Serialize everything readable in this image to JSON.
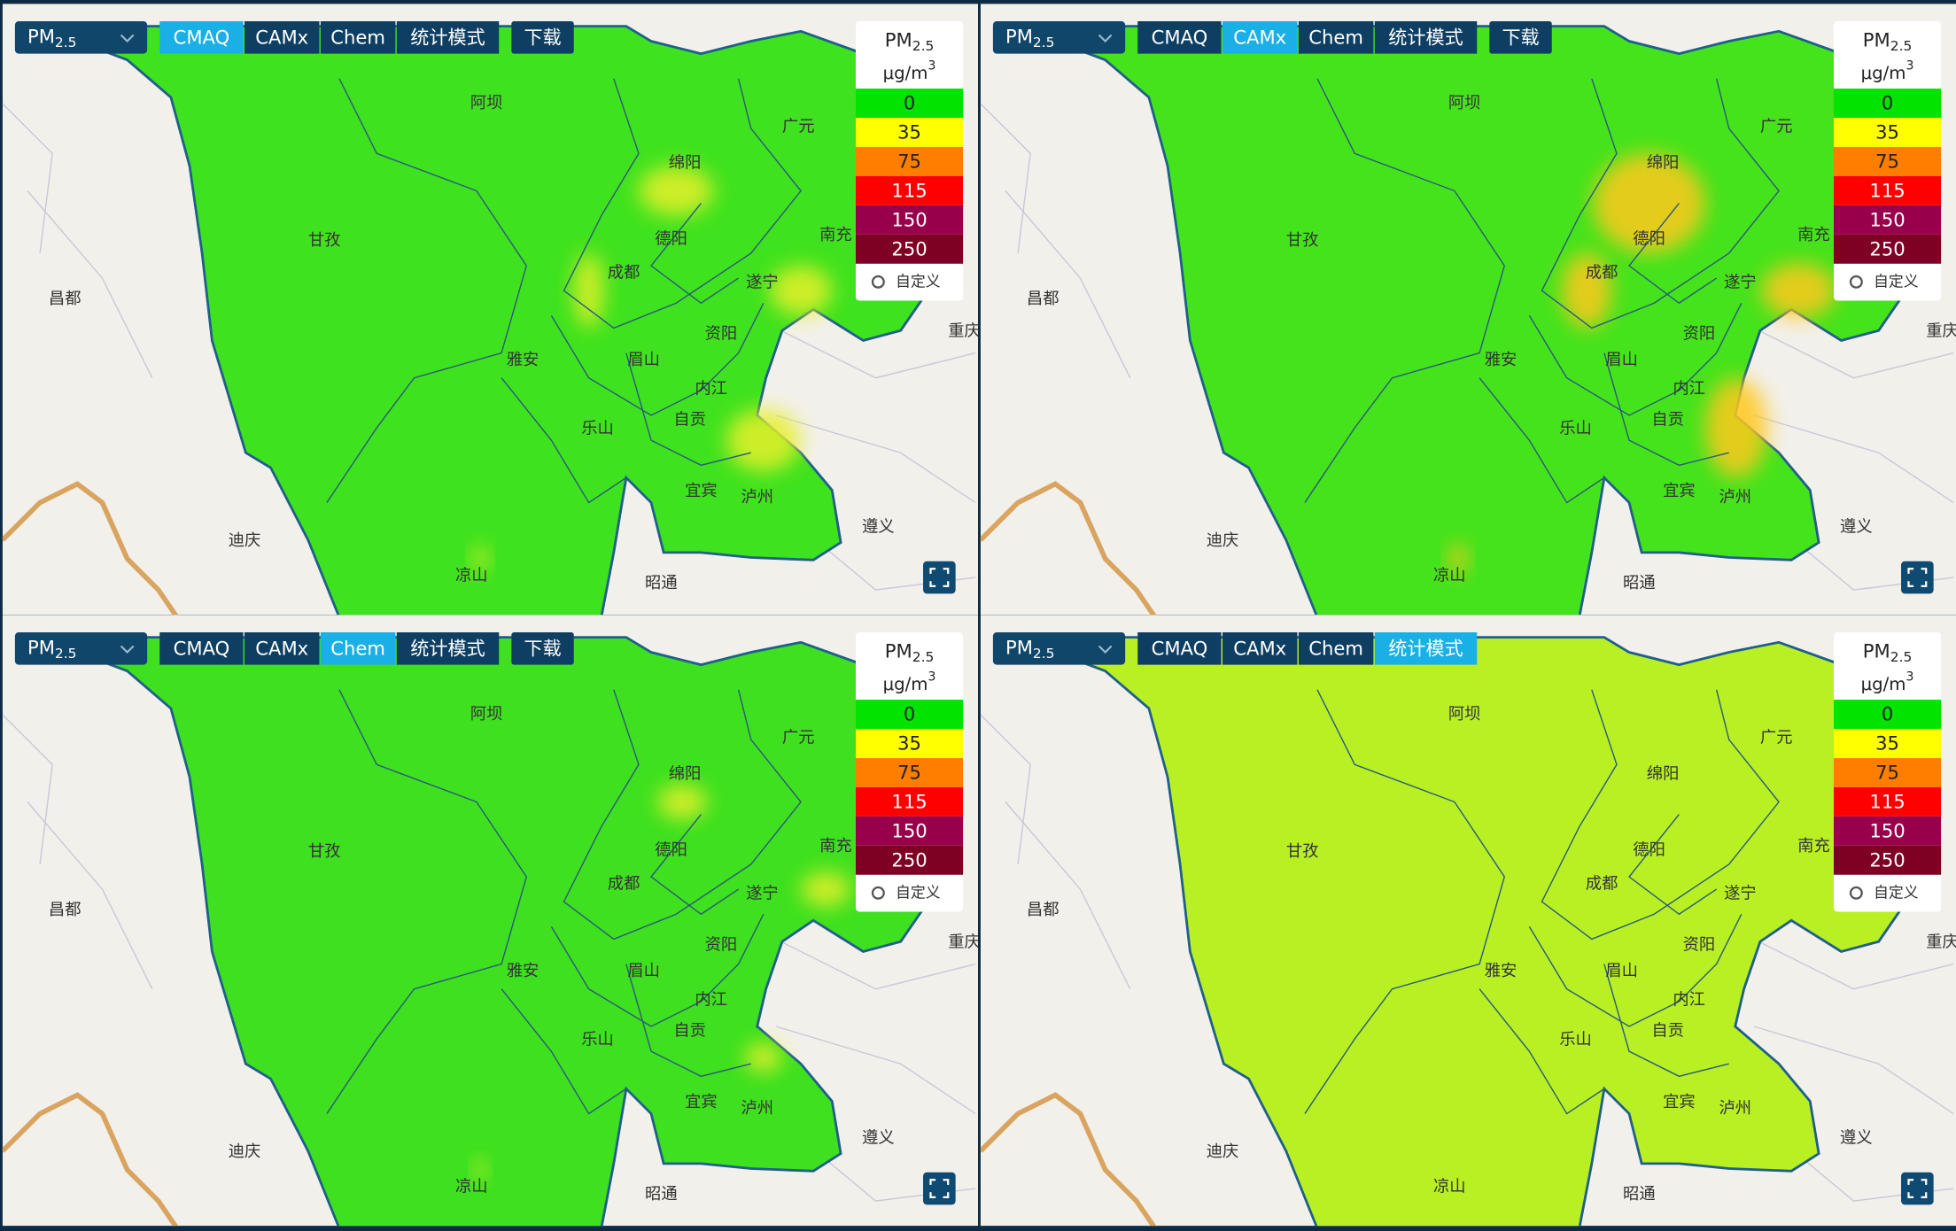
{
  "pollutant": {
    "base": "PM",
    "sub": "2.5"
  },
  "model_buttons": [
    "CMAQ",
    "CAMx",
    "Chem",
    "统计模式"
  ],
  "download": "下载",
  "panels": [
    {
      "active_button": 0,
      "show_download": true,
      "fill": "#3fe21e"
    },
    {
      "active_button": 1,
      "show_download": true,
      "fill": "#45e31c"
    },
    {
      "active_button": 2,
      "show_download": true,
      "fill": "#3ee01f"
    },
    {
      "active_button": 3,
      "show_download": false,
      "fill": "#b8f024"
    }
  ],
  "legend": {
    "unit": {
      "base": "μg/m",
      "sup": "3"
    },
    "levels": [
      0,
      35,
      75,
      115,
      150,
      250
    ],
    "colors": [
      "#00e400",
      "#ffff00",
      "#ff7e00",
      "#ff0000",
      "#99004c",
      "#7e0023"
    ],
    "custom": "自定义"
  },
  "cities": [
    "阿坝",
    "广元",
    "绵阳",
    "甘孜",
    "德阳",
    "南充",
    "成都",
    "遂宁",
    "昌都",
    "重庆",
    "资阳",
    "雅安",
    "眉山",
    "内江",
    "乐山",
    "自贡",
    "宜宾",
    "泸州",
    "遵义",
    "迪庆",
    "凉山",
    "昭通"
  ]
}
